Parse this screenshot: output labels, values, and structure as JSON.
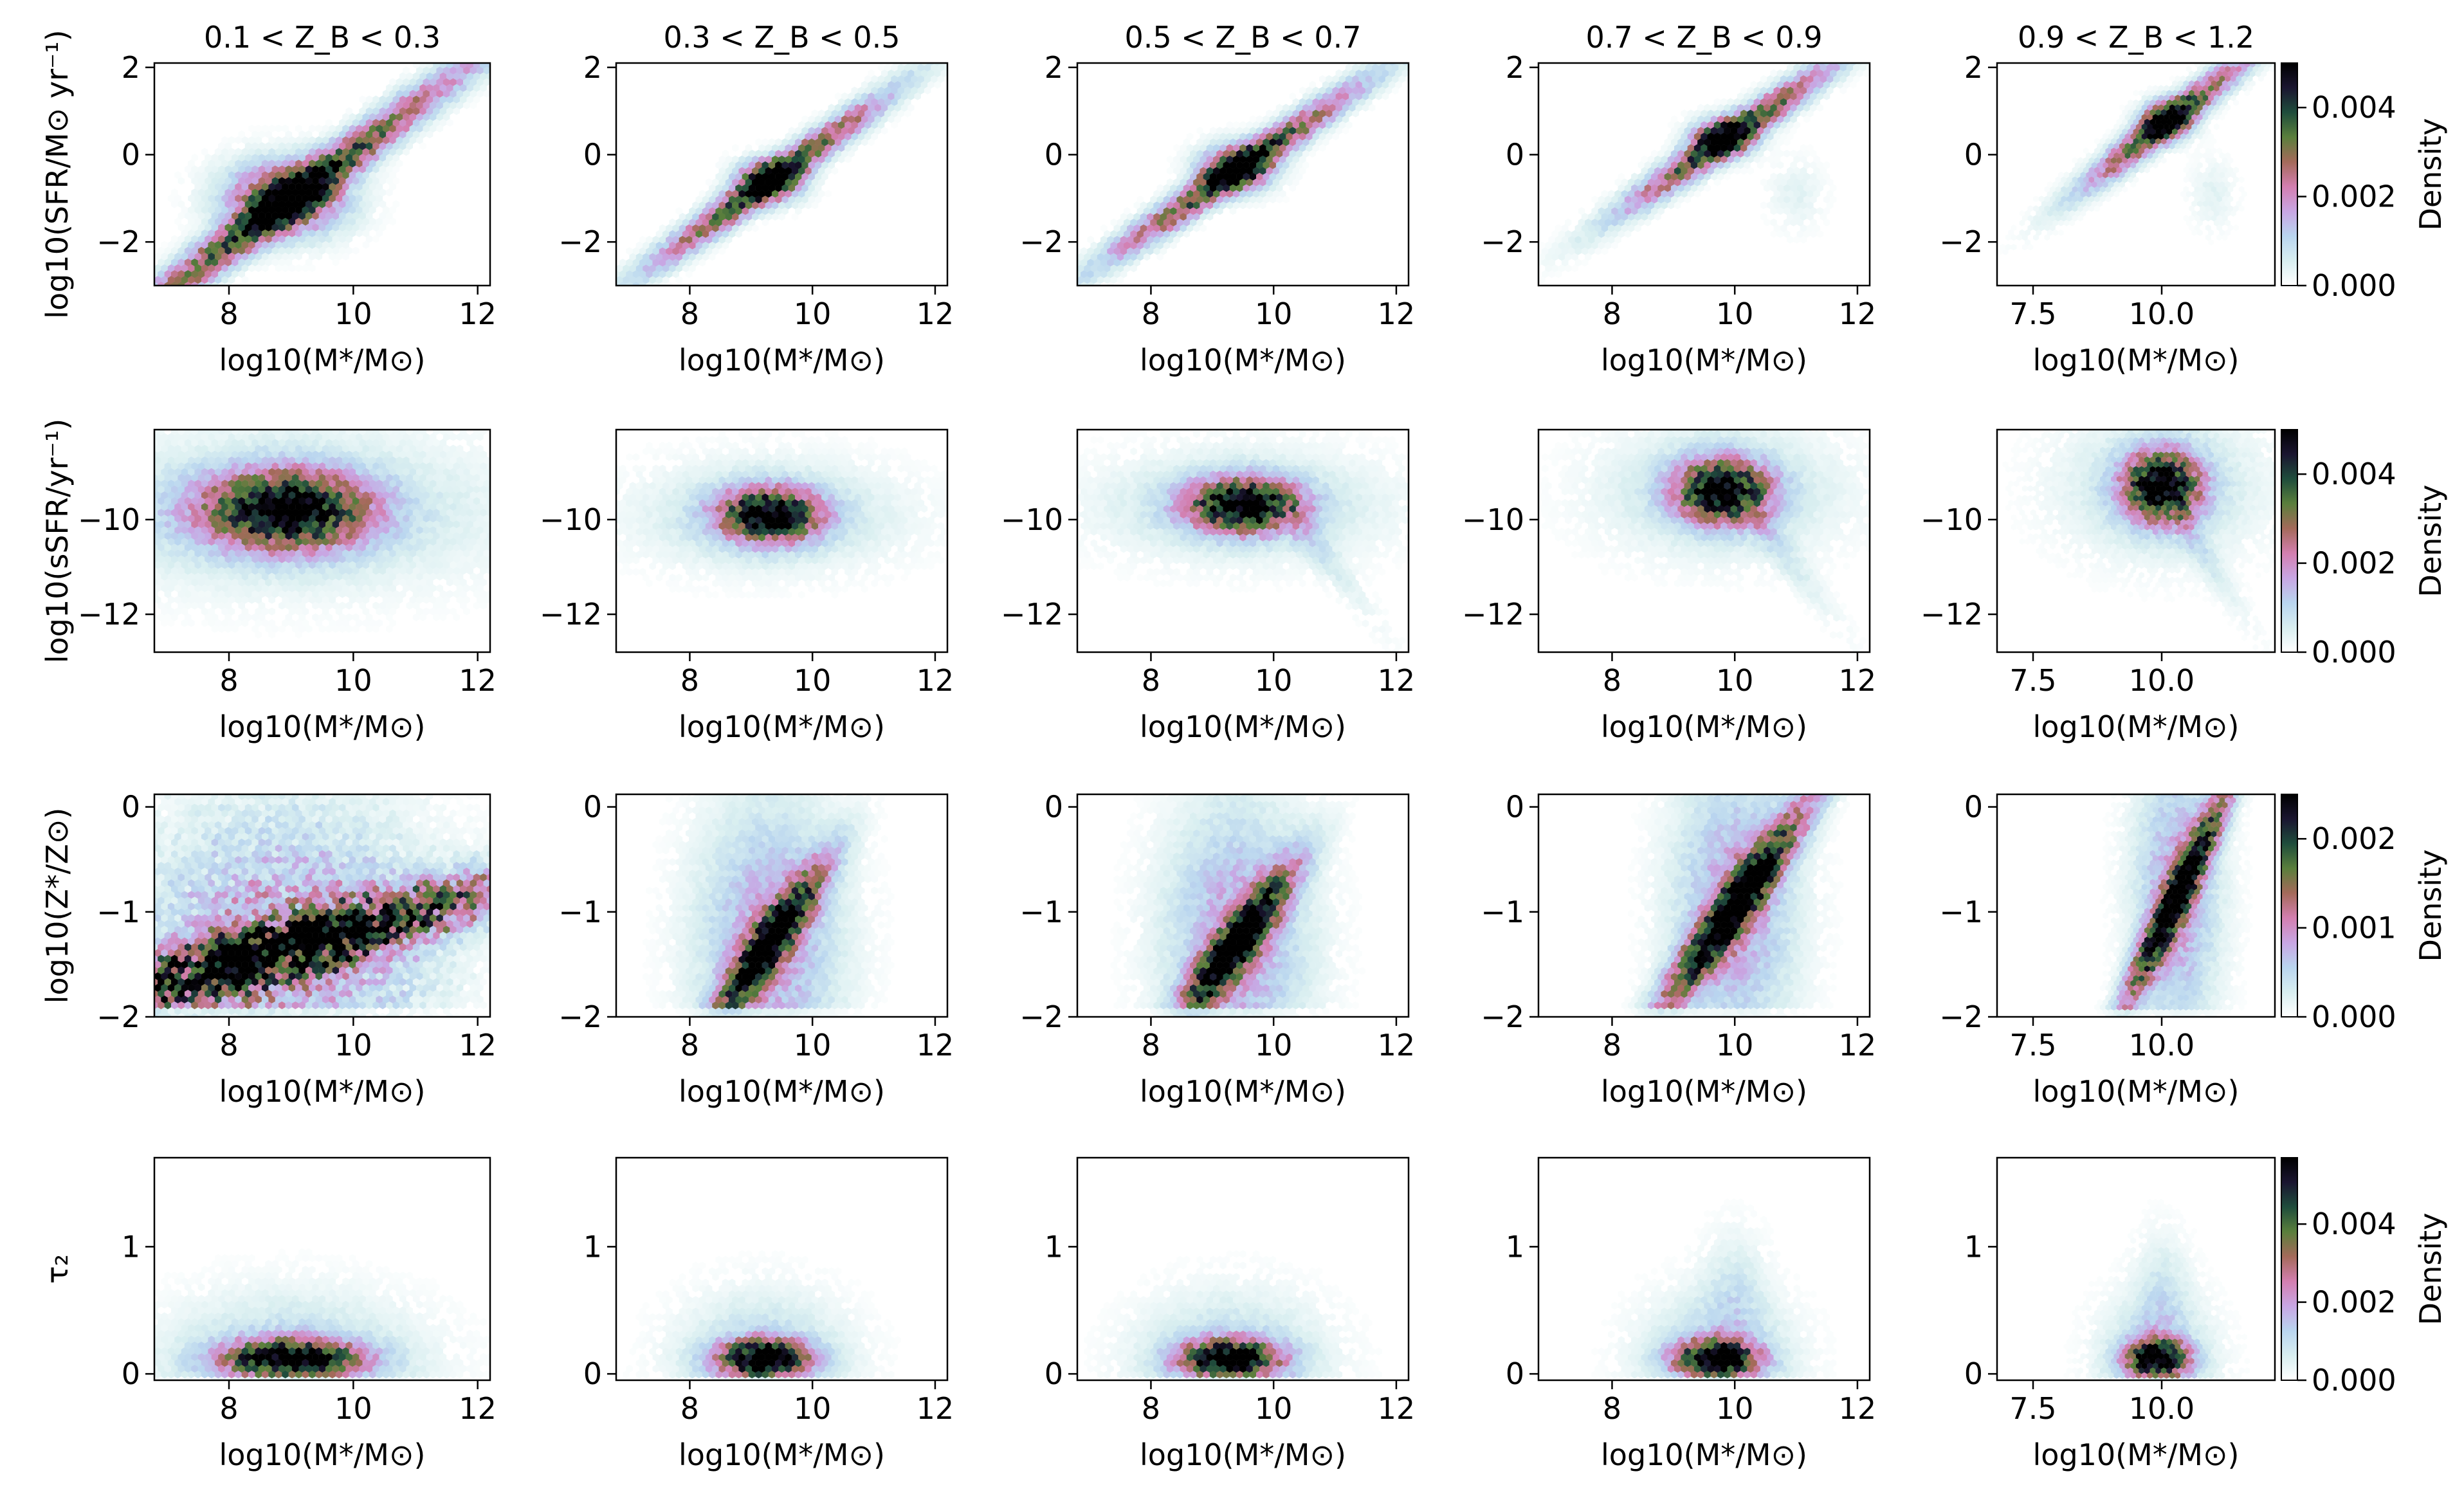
{
  "figure": {
    "column_titles": [
      "0.1 < Z_B < 0.3",
      "0.3 < Z_B < 0.5",
      "0.5 < Z_B < 0.7",
      "0.7 < Z_B < 0.9",
      "0.9 < Z_B < 1.2"
    ],
    "xlabel": "log10(M*/M⊙)",
    "colorbar_label": "Density",
    "colormap": "cubehelix_r",
    "colormap_stops": [
      "#ffffff",
      "#d8eef0",
      "#b9d5ef",
      "#c8a6e3",
      "#d37fb0",
      "#a46a5a",
      "#5a7f3c",
      "#1f4d3c",
      "#1a1530",
      "#000000"
    ]
  },
  "chart_data": [
    {
      "type": "heatmap",
      "row": 0,
      "col": 0,
      "title": "0.1 < Z_B < 0.3",
      "ylabel": "log10(SFR/M⊙ yr⁻¹)",
      "xlabel": "log10(M*/M⊙)",
      "xlim": [
        6.8,
        12.2
      ],
      "ylim": [
        -3.0,
        2.1
      ],
      "xticks": [
        8,
        10,
        12
      ],
      "xticklabels": [
        "8",
        "10",
        "12"
      ],
      "yticks": [
        -2,
        0,
        2
      ],
      "yticklabels": [
        "−2",
        "0",
        "2"
      ],
      "density_peak": {
        "x": 8.9,
        "y": -1.0
      },
      "density_trend": "ridge along SFR ≈ 1.05·(M−9.0) − 1.0"
    },
    {
      "type": "heatmap",
      "row": 0,
      "col": 1,
      "title": "0.3 < Z_B < 0.5",
      "ylabel": "",
      "xlabel": "log10(M*/M⊙)",
      "xlim": [
        6.8,
        12.2
      ],
      "ylim": [
        -3.0,
        2.1
      ],
      "xticks": [
        8,
        10,
        12
      ],
      "xticklabels": [
        "8",
        "10",
        "12"
      ],
      "yticks": [
        -2,
        0,
        2
      ],
      "yticklabels": [
        "−2",
        "0",
        "2"
      ],
      "density_peak": {
        "x": 9.3,
        "y": -0.6
      }
    },
    {
      "type": "heatmap",
      "row": 0,
      "col": 2,
      "title": "0.5 < Z_B < 0.7",
      "ylabel": "",
      "xlabel": "log10(M*/M⊙)",
      "xlim": [
        6.8,
        12.2
      ],
      "ylim": [
        -3.0,
        2.1
      ],
      "xticks": [
        8,
        10,
        12
      ],
      "xticklabels": [
        "8",
        "10",
        "12"
      ],
      "yticks": [
        -2,
        0,
        2
      ],
      "yticklabels": [
        "−2",
        "0",
        "2"
      ],
      "density_peak": {
        "x": 9.4,
        "y": -0.3
      }
    },
    {
      "type": "heatmap",
      "row": 0,
      "col": 3,
      "title": "0.7 < Z_B < 0.9",
      "ylabel": "",
      "xlabel": "log10(M*/M⊙)",
      "xlim": [
        6.8,
        12.2
      ],
      "ylim": [
        -3.0,
        2.1
      ],
      "xticks": [
        8,
        10,
        12
      ],
      "xticklabels": [
        "8",
        "10",
        "12"
      ],
      "yticks": [
        -2,
        0,
        2
      ],
      "yticklabels": [
        "−2",
        "0",
        "2"
      ],
      "density_peak": {
        "x": 9.8,
        "y": 0.4
      }
    },
    {
      "type": "heatmap",
      "row": 0,
      "col": 4,
      "title": "0.9 < Z_B < 1.2",
      "ylabel": "",
      "xlabel": "log10(M*/M⊙)",
      "xlim": [
        6.8,
        12.2
      ],
      "ylim": [
        -3.0,
        2.1
      ],
      "xticks": [
        7.5,
        10.0
      ],
      "xticklabels": [
        "7.5",
        "10.0"
      ],
      "yticks": [
        -2,
        0,
        2
      ],
      "yticklabels": [
        "−2",
        "0",
        "2"
      ],
      "density_peak": {
        "x": 10.1,
        "y": 0.8
      }
    },
    {
      "type": "heatmap",
      "row": 1,
      "col": 0,
      "title": "",
      "ylabel": "log10(sSFR/yr⁻¹)",
      "xlabel": "log10(M*/M⊙)",
      "xlim": [
        6.8,
        12.2
      ],
      "ylim": [
        -12.8,
        -8.1
      ],
      "xticks": [
        8,
        10,
        12
      ],
      "xticklabels": [
        "8",
        "10",
        "12"
      ],
      "yticks": [
        -12,
        -10
      ],
      "yticklabels": [
        "−12",
        "−10"
      ],
      "density_peak": {
        "x": 8.9,
        "y": -9.8
      }
    },
    {
      "type": "heatmap",
      "row": 1,
      "col": 1,
      "title": "",
      "ylabel": "",
      "xlabel": "log10(M*/M⊙)",
      "xlim": [
        6.8,
        12.2
      ],
      "ylim": [
        -12.8,
        -8.1
      ],
      "xticks": [
        8,
        10,
        12
      ],
      "xticklabels": [
        "8",
        "10",
        "12"
      ],
      "yticks": [
        -12,
        -10
      ],
      "yticklabels": [
        "−12",
        "−10"
      ],
      "density_peak": {
        "x": 9.3,
        "y": -9.9
      }
    },
    {
      "type": "heatmap",
      "row": 1,
      "col": 2,
      "title": "",
      "ylabel": "",
      "xlabel": "log10(M*/M⊙)",
      "xlim": [
        6.8,
        12.2
      ],
      "ylim": [
        -12.8,
        -8.1
      ],
      "xticks": [
        8,
        10,
        12
      ],
      "xticklabels": [
        "8",
        "10",
        "12"
      ],
      "yticks": [
        -12,
        -10
      ],
      "yticklabels": [
        "−12",
        "−10"
      ],
      "density_peak": {
        "x": 9.5,
        "y": -9.7
      }
    },
    {
      "type": "heatmap",
      "row": 1,
      "col": 3,
      "title": "",
      "ylabel": "",
      "xlabel": "log10(M*/M⊙)",
      "xlim": [
        6.8,
        12.2
      ],
      "ylim": [
        -12.8,
        -8.1
      ],
      "xticks": [
        8,
        10,
        12
      ],
      "xticklabels": [
        "8",
        "10",
        "12"
      ],
      "yticks": [
        -12,
        -10
      ],
      "yticklabels": [
        "−12",
        "−10"
      ],
      "density_peak": {
        "x": 9.8,
        "y": -9.4
      }
    },
    {
      "type": "heatmap",
      "row": 1,
      "col": 4,
      "title": "",
      "ylabel": "",
      "xlabel": "log10(M*/M⊙)",
      "xlim": [
        6.8,
        12.2
      ],
      "ylim": [
        -12.8,
        -8.1
      ],
      "xticks": [
        7.5,
        10.0
      ],
      "xticklabels": [
        "7.5",
        "10.0"
      ],
      "yticks": [
        -12,
        -10
      ],
      "yticklabels": [
        "−12",
        "−10"
      ],
      "density_peak": {
        "x": 10.0,
        "y": -9.3
      }
    },
    {
      "type": "heatmap",
      "row": 2,
      "col": 0,
      "title": "",
      "ylabel": "log10(Z*/Z⊙)",
      "xlabel": "log10(M*/M⊙)",
      "xlim": [
        6.8,
        12.2
      ],
      "ylim": [
        -2.0,
        0.12
      ],
      "xticks": [
        8,
        10,
        12
      ],
      "xticklabels": [
        "8",
        "10",
        "12"
      ],
      "yticks": [
        -2,
        -1,
        0
      ],
      "yticklabels": [
        "−2",
        "−1",
        "0"
      ],
      "density_peak": {
        "x": 8.8,
        "y": -1.6
      }
    },
    {
      "type": "heatmap",
      "row": 2,
      "col": 1,
      "title": "",
      "ylabel": "",
      "xlabel": "log10(M*/M⊙)",
      "xlim": [
        6.8,
        12.2
      ],
      "ylim": [
        -2.0,
        0.12
      ],
      "xticks": [
        8,
        10,
        12
      ],
      "xticklabels": [
        "8",
        "10",
        "12"
      ],
      "yticks": [
        -2,
        -1,
        0
      ],
      "yticklabels": [
        "−2",
        "−1",
        "0"
      ],
      "density_peak": {
        "x": 9.3,
        "y": -1.4
      }
    },
    {
      "type": "heatmap",
      "row": 2,
      "col": 2,
      "title": "",
      "ylabel": "",
      "xlabel": "log10(M*/M⊙)",
      "xlim": [
        6.8,
        12.2
      ],
      "ylim": [
        -2.0,
        0.12
      ],
      "xticks": [
        8,
        10,
        12
      ],
      "xticklabels": [
        "8",
        "10",
        "12"
      ],
      "yticks": [
        -2,
        -1,
        0
      ],
      "yticklabels": [
        "−2",
        "−1",
        "0"
      ],
      "density_peak": {
        "x": 9.4,
        "y": -1.4
      }
    },
    {
      "type": "heatmap",
      "row": 2,
      "col": 3,
      "title": "",
      "ylabel": "",
      "xlabel": "log10(M*/M⊙)",
      "xlim": [
        6.8,
        12.2
      ],
      "ylim": [
        -2.0,
        0.12
      ],
      "xticks": [
        8,
        10,
        12
      ],
      "xticklabels": [
        "8",
        "10",
        "12"
      ],
      "yticks": [
        -2,
        -1,
        0
      ],
      "yticklabels": [
        "−2",
        "−1",
        "0"
      ],
      "density_peak": {
        "x": 9.9,
        "y": -1.0
      }
    },
    {
      "type": "heatmap",
      "row": 2,
      "col": 4,
      "title": "",
      "ylabel": "",
      "xlabel": "log10(M*/M⊙)",
      "xlim": [
        6.8,
        12.2
      ],
      "ylim": [
        -2.0,
        0.12
      ],
      "xticks": [
        7.5,
        10.0
      ],
      "xticklabels": [
        "7.5",
        "10.0"
      ],
      "yticks": [
        -2,
        -1,
        0
      ],
      "yticklabels": [
        "−2",
        "−1",
        "0"
      ],
      "density_peak": {
        "x": 10.3,
        "y": -0.6
      }
    },
    {
      "type": "heatmap",
      "row": 3,
      "col": 0,
      "title": "",
      "ylabel": "τ₂",
      "xlabel": "log10(M*/M⊙)",
      "xlim": [
        6.8,
        12.2
      ],
      "ylim": [
        -0.05,
        1.7
      ],
      "xticks": [
        8,
        10,
        12
      ],
      "xticklabels": [
        "8",
        "10",
        "12"
      ],
      "yticks": [
        0,
        1
      ],
      "yticklabels": [
        "0",
        "1"
      ],
      "density_peak": {
        "x": 9.0,
        "y": 0.12
      }
    },
    {
      "type": "heatmap",
      "row": 3,
      "col": 1,
      "title": "",
      "ylabel": "",
      "xlabel": "log10(M*/M⊙)",
      "xlim": [
        6.8,
        12.2
      ],
      "ylim": [
        -0.05,
        1.7
      ],
      "xticks": [
        8,
        10,
        12
      ],
      "xticklabels": [
        "8",
        "10",
        "12"
      ],
      "yticks": [
        0,
        1
      ],
      "yticklabels": [
        "0",
        "1"
      ],
      "density_peak": {
        "x": 9.2,
        "y": 0.12
      }
    },
    {
      "type": "heatmap",
      "row": 3,
      "col": 2,
      "title": "",
      "ylabel": "",
      "xlabel": "log10(M*/M⊙)",
      "xlim": [
        6.8,
        12.2
      ],
      "ylim": [
        -0.05,
        1.7
      ],
      "xticks": [
        8,
        10,
        12
      ],
      "xticklabels": [
        "8",
        "10",
        "12"
      ],
      "yticks": [
        0,
        1
      ],
      "yticklabels": [
        "0",
        "1"
      ],
      "density_peak": {
        "x": 9.3,
        "y": 0.12
      }
    },
    {
      "type": "heatmap",
      "row": 3,
      "col": 3,
      "title": "",
      "ylabel": "",
      "xlabel": "log10(M*/M⊙)",
      "xlim": [
        6.8,
        12.2
      ],
      "ylim": [
        -0.05,
        1.7
      ],
      "xticks": [
        8,
        10,
        12
      ],
      "xticklabels": [
        "8",
        "10",
        "12"
      ],
      "yticks": [
        0,
        1
      ],
      "yticklabels": [
        "0",
        "1"
      ],
      "density_peak": {
        "x": 9.7,
        "y": 0.15
      }
    },
    {
      "type": "heatmap",
      "row": 3,
      "col": 4,
      "title": "",
      "ylabel": "",
      "xlabel": "log10(M*/M⊙)",
      "xlim": [
        6.8,
        12.2
      ],
      "ylim": [
        -0.05,
        1.7
      ],
      "xticks": [
        7.5,
        10.0
      ],
      "xticklabels": [
        "7.5",
        "10.0"
      ],
      "yticks": [
        0,
        1
      ],
      "yticklabels": [
        "0",
        "1"
      ],
      "density_peak": {
        "x": 9.9,
        "y": 0.2
      }
    }
  ],
  "colorbars": [
    {
      "row": 0,
      "label": "Density",
      "range": [
        0,
        0.005
      ],
      "ticks": [
        0,
        0.002,
        0.004
      ],
      "ticklabels": [
        "0.000",
        "0.002",
        "0.004"
      ]
    },
    {
      "row": 1,
      "label": "Density",
      "range": [
        0,
        0.005
      ],
      "ticks": [
        0,
        0.002,
        0.004
      ],
      "ticklabels": [
        "0.000",
        "0.002",
        "0.004"
      ]
    },
    {
      "row": 2,
      "label": "Density",
      "range": [
        0,
        0.0025
      ],
      "ticks": [
        0,
        0.001,
        0.002
      ],
      "ticklabels": [
        "0.000",
        "0.001",
        "0.002"
      ]
    },
    {
      "row": 3,
      "label": "Density",
      "range": [
        0,
        0.0057
      ],
      "ticks": [
        0,
        0.002,
        0.004
      ],
      "ticklabels": [
        "0.000",
        "0.002",
        "0.004"
      ]
    }
  ]
}
